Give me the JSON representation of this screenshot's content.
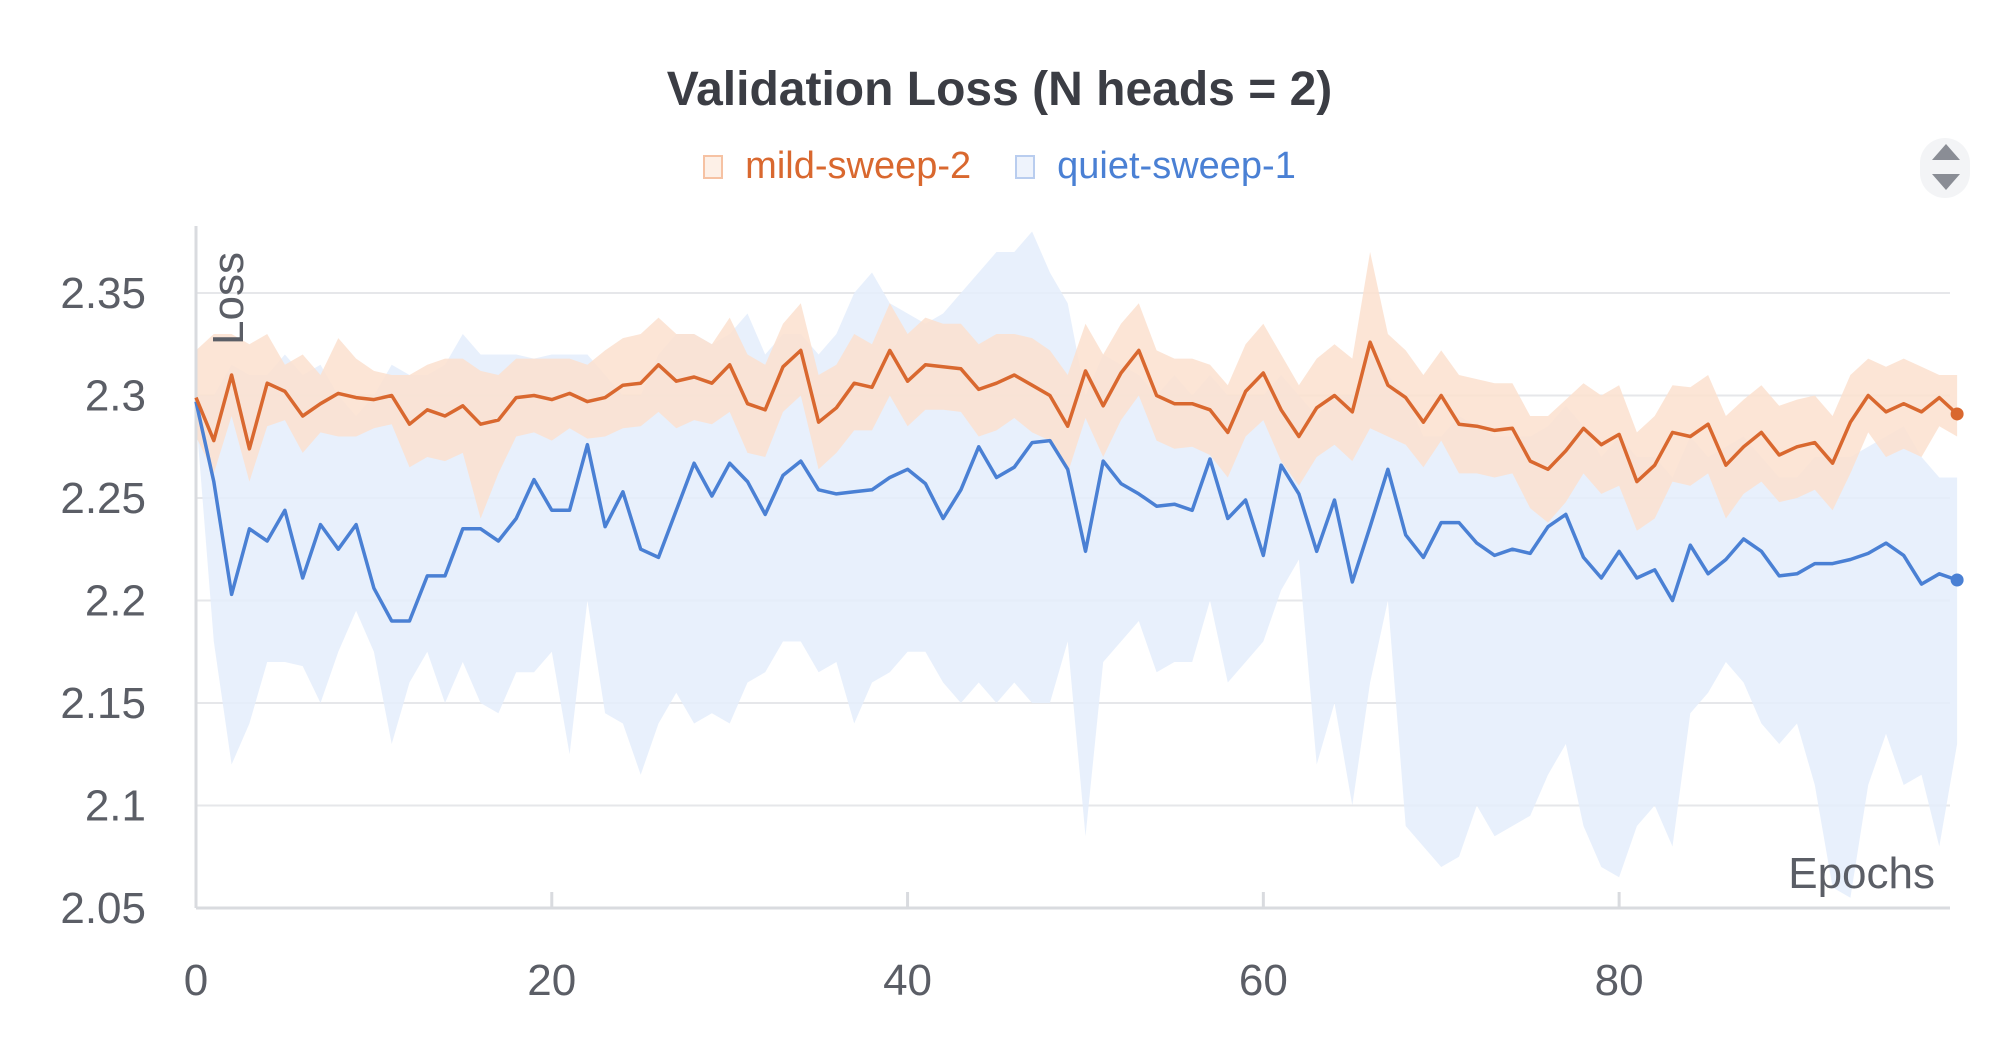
{
  "chart_data": {
    "type": "line",
    "title": "Validation Loss (N heads = 2)",
    "xlabel": "Epochs",
    "ylabel": "Loss",
    "xlim": [
      0,
      99
    ],
    "ylim": [
      2.05,
      2.38
    ],
    "x_ticks": [
      0,
      20,
      40,
      60,
      80
    ],
    "y_ticks": [
      2.05,
      2.1,
      2.15,
      2.2,
      2.25,
      2.3,
      2.35
    ],
    "grid": true,
    "legend_position": "top-center",
    "series": [
      {
        "name": "mild-sweep-2",
        "color": "#d9682f",
        "band_color": "#fbe1cf",
        "values": [
          2.299,
          2.278,
          2.31,
          2.274,
          2.306,
          2.302,
          2.29,
          2.296,
          2.301,
          2.299,
          2.298,
          2.3,
          2.286,
          2.293,
          2.29,
          2.295,
          2.286,
          2.288,
          2.299,
          2.3,
          2.298,
          2.301,
          2.297,
          2.299,
          2.305,
          2.306,
          2.315,
          2.307,
          2.309,
          2.306,
          2.315,
          2.296,
          2.293,
          2.314,
          2.322,
          2.287,
          2.294,
          2.306,
          2.304,
          2.322,
          2.307,
          2.315,
          2.314,
          2.313,
          2.303,
          2.306,
          2.31,
          2.305,
          2.3,
          2.285,
          2.312,
          2.295,
          2.311,
          2.322,
          2.3,
          2.296,
          2.296,
          2.293,
          2.282,
          2.302,
          2.311,
          2.293,
          2.28,
          2.294,
          2.3,
          2.292,
          2.326,
          2.305,
          2.299,
          2.287,
          2.3,
          2.286,
          2.285,
          2.283,
          2.284,
          2.268,
          2.264,
          2.273,
          2.284,
          2.276,
          2.281,
          2.258,
          2.266,
          2.282,
          2.28,
          2.286,
          2.266,
          2.275,
          2.282,
          2.271,
          2.275,
          2.277,
          2.267,
          2.287,
          2.3,
          2.292,
          2.296,
          2.292,
          2.299,
          2.291
        ],
        "upper": [
          2.322,
          2.33,
          2.33,
          2.325,
          2.33,
          2.315,
          2.32,
          2.31,
          2.328,
          2.318,
          2.312,
          2.31,
          2.31,
          2.315,
          2.318,
          2.318,
          2.312,
          2.31,
          2.318,
          2.318,
          2.318,
          2.318,
          2.315,
          2.322,
          2.328,
          2.33,
          2.338,
          2.33,
          2.33,
          2.325,
          2.338,
          2.32,
          2.315,
          2.335,
          2.345,
          2.31,
          2.315,
          2.33,
          2.325,
          2.345,
          2.33,
          2.338,
          2.335,
          2.335,
          2.325,
          2.33,
          2.33,
          2.328,
          2.322,
          2.31,
          2.335,
          2.32,
          2.335,
          2.345,
          2.322,
          2.318,
          2.318,
          2.315,
          2.305,
          2.325,
          2.335,
          2.32,
          2.305,
          2.318,
          2.325,
          2.318,
          2.37,
          2.33,
          2.322,
          2.31,
          2.322,
          2.31,
          2.308,
          2.306,
          2.306,
          2.29,
          2.29,
          2.298,
          2.306,
          2.3,
          2.305,
          2.282,
          2.29,
          2.305,
          2.304,
          2.31,
          2.29,
          2.298,
          2.305,
          2.295,
          2.298,
          2.3,
          2.29,
          2.31,
          2.318,
          2.314,
          2.318,
          2.314,
          2.31,
          2.31
        ],
        "lower": [
          2.28,
          2.262,
          2.29,
          2.258,
          2.285,
          2.288,
          2.272,
          2.282,
          2.28,
          2.28,
          2.284,
          2.286,
          2.265,
          2.27,
          2.268,
          2.272,
          2.24,
          2.262,
          2.28,
          2.282,
          2.278,
          2.284,
          2.279,
          2.28,
          2.284,
          2.285,
          2.292,
          2.284,
          2.288,
          2.286,
          2.292,
          2.272,
          2.27,
          2.292,
          2.3,
          2.264,
          2.272,
          2.283,
          2.283,
          2.3,
          2.285,
          2.293,
          2.293,
          2.292,
          2.28,
          2.283,
          2.289,
          2.282,
          2.278,
          2.262,
          2.289,
          2.27,
          2.288,
          2.3,
          2.278,
          2.274,
          2.275,
          2.271,
          2.26,
          2.28,
          2.288,
          2.268,
          2.256,
          2.27,
          2.276,
          2.268,
          2.284,
          2.28,
          2.276,
          2.265,
          2.278,
          2.262,
          2.262,
          2.26,
          2.262,
          2.245,
          2.238,
          2.248,
          2.262,
          2.252,
          2.256,
          2.234,
          2.24,
          2.258,
          2.256,
          2.262,
          2.24,
          2.252,
          2.258,
          2.248,
          2.25,
          2.254,
          2.244,
          2.262,
          2.282,
          2.27,
          2.274,
          2.27,
          2.285,
          2.28
        ]
      },
      {
        "name": "quiet-sweep-1",
        "color": "#4a80d4",
        "band_color": "#e4edfb",
        "values": [
          2.297,
          2.258,
          2.203,
          2.235,
          2.229,
          2.244,
          2.211,
          2.237,
          2.225,
          2.237,
          2.206,
          2.19,
          2.19,
          2.212,
          2.212,
          2.235,
          2.235,
          2.229,
          2.24,
          2.259,
          2.244,
          2.244,
          2.276,
          2.236,
          2.253,
          2.225,
          2.221,
          2.244,
          2.267,
          2.251,
          2.267,
          2.258,
          2.242,
          2.261,
          2.268,
          2.254,
          2.252,
          2.253,
          2.254,
          2.26,
          2.264,
          2.257,
          2.24,
          2.254,
          2.275,
          2.26,
          2.265,
          2.277,
          2.278,
          2.264,
          2.224,
          2.268,
          2.257,
          2.252,
          2.246,
          2.247,
          2.244,
          2.269,
          2.24,
          2.249,
          2.222,
          2.266,
          2.252,
          2.224,
          2.249,
          2.209,
          2.236,
          2.264,
          2.232,
          2.221,
          2.238,
          2.238,
          2.228,
          2.222,
          2.225,
          2.223,
          2.236,
          2.242,
          2.221,
          2.211,
          2.224,
          2.211,
          2.215,
          2.2,
          2.227,
          2.213,
          2.22,
          2.23,
          2.224,
          2.212,
          2.213,
          2.218,
          2.218,
          2.22,
          2.223,
          2.228,
          2.222,
          2.208,
          2.213,
          2.21
        ],
        "upper": [
          2.3,
          2.3,
          2.315,
          2.31,
          2.31,
          2.32,
          2.31,
          2.315,
          2.3,
          2.29,
          2.3,
          2.315,
          2.31,
          2.31,
          2.315,
          2.33,
          2.32,
          2.32,
          2.32,
          2.318,
          2.32,
          2.32,
          2.32,
          2.31,
          2.3,
          2.3,
          2.32,
          2.33,
          2.33,
          2.325,
          2.33,
          2.34,
          2.32,
          2.33,
          2.33,
          2.32,
          2.33,
          2.35,
          2.36,
          2.345,
          2.34,
          2.335,
          2.34,
          2.35,
          2.36,
          2.37,
          2.37,
          2.38,
          2.36,
          2.345,
          2.3,
          2.32,
          2.315,
          2.31,
          2.3,
          2.31,
          2.3,
          2.31,
          2.3,
          2.3,
          2.3,
          2.31,
          2.3,
          2.29,
          2.3,
          2.3,
          2.32,
          2.31,
          2.3,
          2.28,
          2.28,
          2.29,
          2.285,
          2.28,
          2.28,
          2.28,
          2.285,
          2.295,
          2.285,
          2.27,
          2.28,
          2.27,
          2.27,
          2.26,
          2.28,
          2.27,
          2.275,
          2.28,
          2.27,
          2.26,
          2.26,
          2.27,
          2.27,
          2.27,
          2.275,
          2.28,
          2.285,
          2.27,
          2.26,
          2.26
        ],
        "lower": [
          2.29,
          2.18,
          2.12,
          2.14,
          2.17,
          2.17,
          2.168,
          2.15,
          2.175,
          2.195,
          2.175,
          2.13,
          2.16,
          2.175,
          2.15,
          2.17,
          2.15,
          2.145,
          2.165,
          2.165,
          2.175,
          2.125,
          2.2,
          2.145,
          2.14,
          2.115,
          2.14,
          2.155,
          2.14,
          2.145,
          2.14,
          2.16,
          2.165,
          2.18,
          2.18,
          2.165,
          2.17,
          2.14,
          2.16,
          2.165,
          2.175,
          2.175,
          2.16,
          2.15,
          2.16,
          2.15,
          2.16,
          2.15,
          2.15,
          2.18,
          2.085,
          2.17,
          2.18,
          2.19,
          2.165,
          2.17,
          2.17,
          2.2,
          2.16,
          2.17,
          2.18,
          2.205,
          2.22,
          2.12,
          2.15,
          2.1,
          2.16,
          2.2,
          2.09,
          2.08,
          2.07,
          2.075,
          2.1,
          2.085,
          2.09,
          2.095,
          2.115,
          2.13,
          2.09,
          2.07,
          2.065,
          2.09,
          2.1,
          2.08,
          2.145,
          2.155,
          2.17,
          2.16,
          2.14,
          2.13,
          2.14,
          2.11,
          2.06,
          2.055,
          2.11,
          2.135,
          2.11,
          2.115,
          2.08,
          2.13
        ]
      }
    ]
  },
  "scroll_control": {
    "icon": "up-down-chevron-icon"
  }
}
